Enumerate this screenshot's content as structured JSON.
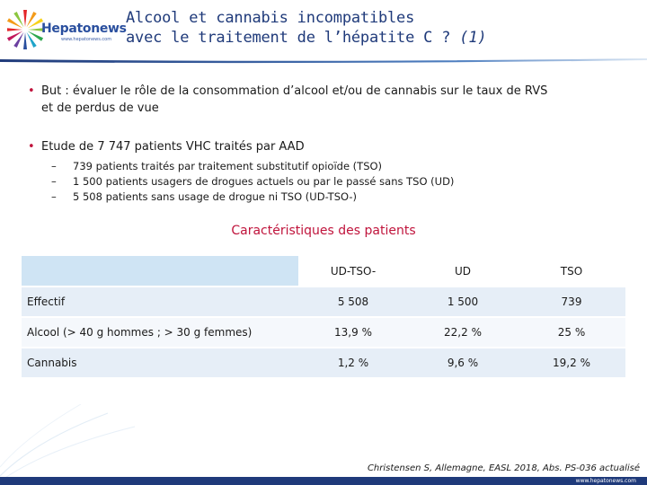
{
  "header": {
    "logo_name": "Hepatonews",
    "logo_url": "www.hepatonews.com",
    "title_line1": "Alcool et cannabis incompatibles",
    "title_line2_main": "avec le traitement de l’hépatite C ? ",
    "title_line2_em": "(1)"
  },
  "bullets": [
    {
      "line1": "But : évaluer le rôle de la consommation d’alcool et/ou de cannabis sur le taux de RVS",
      "line2": "et de perdus de vue"
    },
    {
      "line1": "Etude de 7 747 patients VHC traités par AAD"
    }
  ],
  "subitems": [
    "739 patients traités par traitement substitutif opioïde (TSO)",
    "1 500 patients usagers de drogues actuels ou par le passé sans TSO (UD)",
    "5 508 patients sans usage de drogue ni TSO (UD-TSO-)"
  ],
  "table": {
    "title": "Caractéristiques des patients",
    "columns": [
      "UD-TSO-",
      "UD",
      "TSO"
    ],
    "rows": [
      {
        "label": "Effectif",
        "values": [
          "5 508",
          "1 500",
          "739"
        ]
      },
      {
        "label": "Alcool (> 40 g hommes ; > 30 g femmes)",
        "values": [
          "13,9 %",
          "22,2 %",
          "25 %"
        ]
      },
      {
        "label": "Cannabis",
        "values": [
          "1,2 %",
          "9,6 %",
          "19,2 %"
        ]
      }
    ]
  },
  "footer": {
    "citation": "Christensen S, Allemagne, EASL 2018, Abs. PS-036 actualisé",
    "url": "www.hepatonews.com"
  },
  "colors": {
    "accent_red": "#c0143c",
    "title_blue": "#1f3a7a",
    "table_header_blue": "#cfe4f4",
    "row_blue": "#e6eef7"
  }
}
